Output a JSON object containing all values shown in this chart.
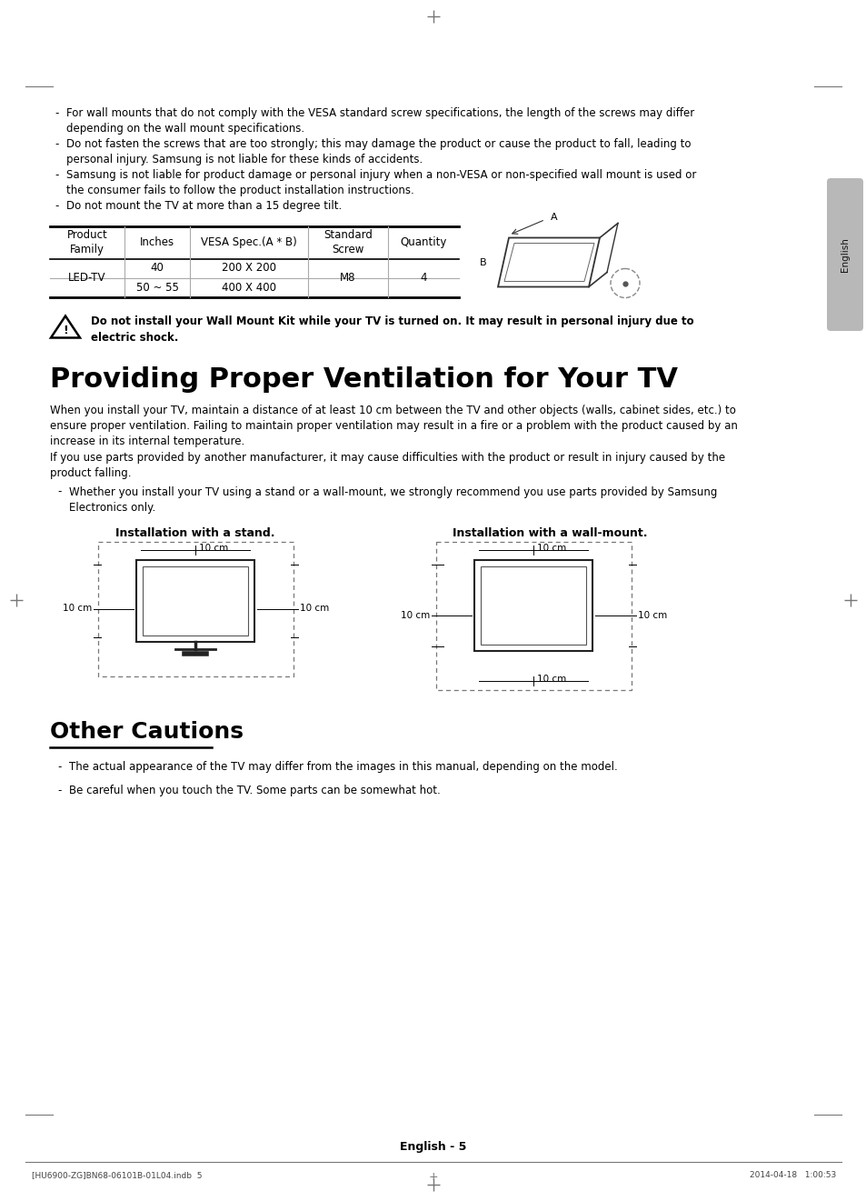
{
  "bg_color": "#ffffff",
  "text_color": "#000000",
  "bullet_items_top": [
    "For wall mounts that do not comply with the VESA standard screw specifications, the length of the screws may differ\ndepending on the wall mount specifications.",
    "Do not fasten the screws that are too strongly; this may damage the product or cause the product to fall, leading to\npersonal injury. Samsung is not liable for these kinds of accidents.",
    "Samsung is not liable for product damage or personal injury when a non-VESA or non-specified wall mount is used or\nthe consumer fails to follow the product installation instructions.",
    "Do not mount the TV at more than a 15 degree tilt."
  ],
  "table_headers": [
    "Product\nFamily",
    "Inches",
    "VESA Spec.(A * B)",
    "Standard\nScrew",
    "Quantity"
  ],
  "table_row_label": "LED-TV",
  "table_row1_inches": "40",
  "table_row1_vesa": "200 X 200",
  "table_row2_inches": "50 ~ 55",
  "table_row2_vesa": "400 X 400",
  "table_m8": "M8",
  "table_qty": "4",
  "warning_text_bold": "Do not install your Wall Mount Kit while your TV is turned on. It may result in personal injury due to\nelectric shock.",
  "section1_title": "Providing Proper Ventilation for Your TV",
  "section1_para1": "When you install your TV, maintain a distance of at least 10 cm between the TV and other objects (walls, cabinet sides, etc.) to\nensure proper ventilation. Failing to maintain proper ventilation may result in a fire or a problem with the product caused by an\nincrease in its internal temperature.",
  "section1_para2": "If you use parts provided by another manufacturer, it may cause difficulties with the product or result in injury caused by the\nproduct falling.",
  "section1_bullet": "Whether you install your TV using a stand or a wall-mount, we strongly recommend you use parts provided by Samsung\nElectronics only.",
  "diagram1_title": "Installation with a stand.",
  "diagram2_title": "Installation with a wall-mount.",
  "section2_title": "Other Cautions",
  "section2_bullets": [
    "The actual appearance of the TV may differ from the images in this manual, depending on the model.",
    "Be careful when you touch the TV. Some parts can be somewhat hot."
  ],
  "footer_text": "English - 5",
  "footer_small_left": "[HU6900-ZG]BN68-06101B-01L04.indb  5",
  "footer_small_right": "2014-04-18   1:00:53",
  "english_tab_text": "English"
}
